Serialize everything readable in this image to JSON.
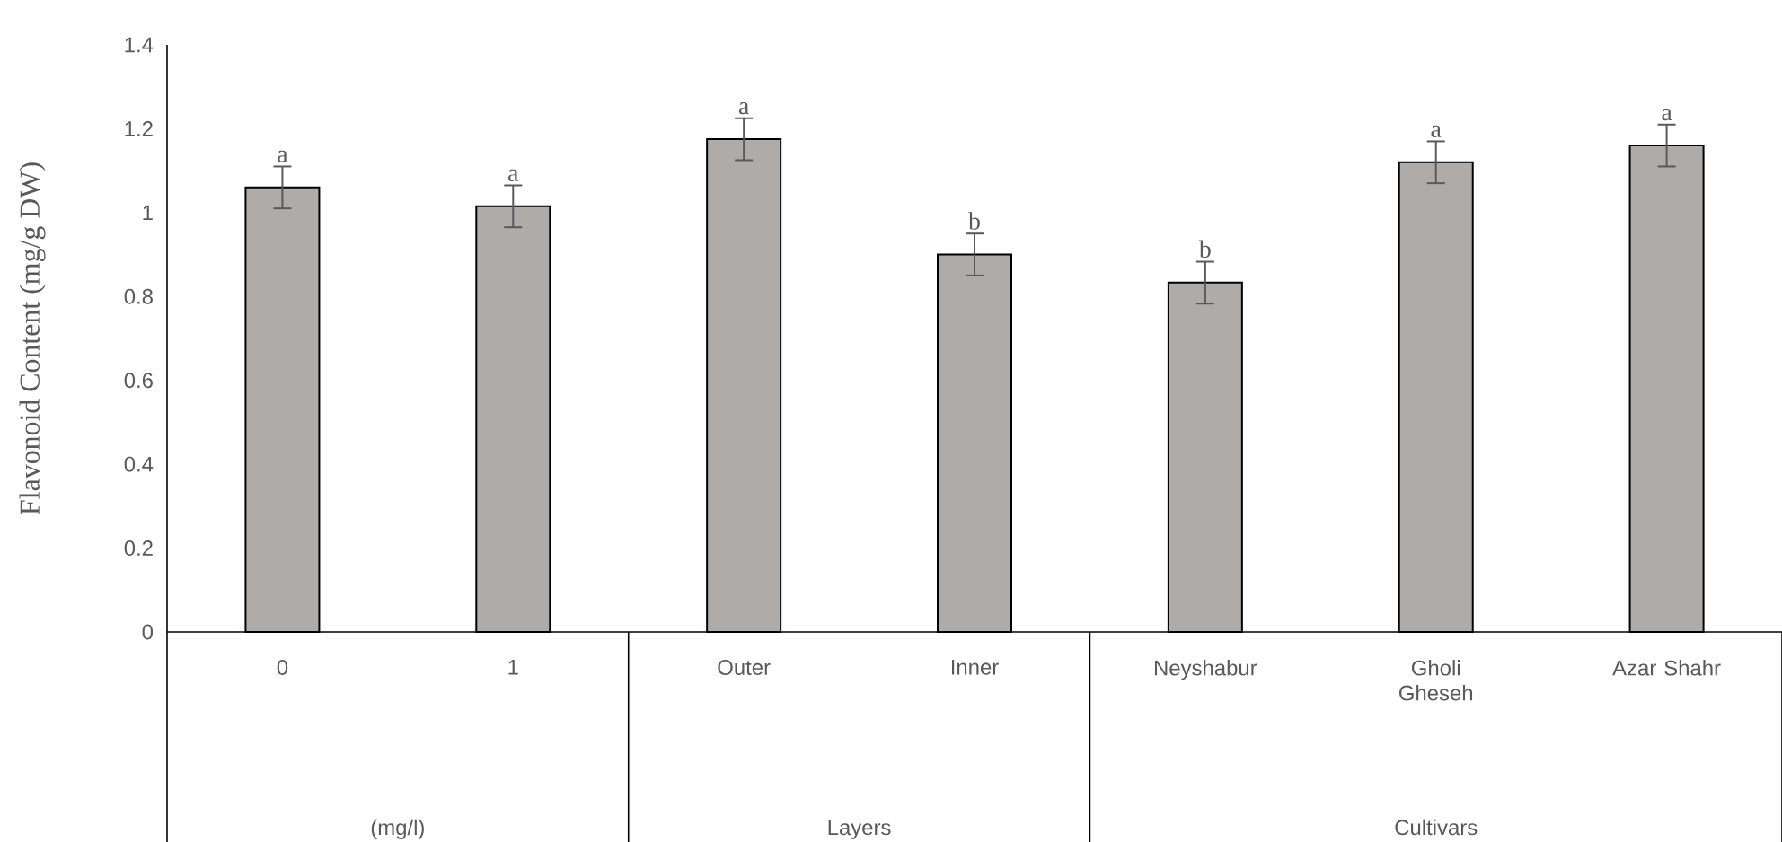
{
  "chart_data": {
    "type": "bar",
    "ylabel": "Flavonoid Content (mg/g DW)",
    "categories": [
      "0",
      "1",
      "Outer",
      "Inner",
      "Neyshabur",
      "Gholi Gheseh",
      "Azar Shahr"
    ],
    "values": [
      1.06,
      1.015,
      1.175,
      0.9,
      0.833,
      1.12,
      1.16
    ],
    "errors": [
      0.05,
      0.05,
      0.05,
      0.05,
      0.05,
      0.05,
      0.05
    ],
    "color": "#afaba9",
    "ylim": [
      0,
      1.4
    ],
    "yticks": [
      0,
      0.2,
      0.4,
      0.6,
      0.8,
      1,
      1.2,
      1.4
    ],
    "grid": false,
    "annotations": [
      {
        "text": "a",
        "x": "0",
        "y": 1.11
      },
      {
        "text": "a",
        "x": "1",
        "y": 1.065
      },
      {
        "text": "a",
        "x": "Outer",
        "y": 1.225
      },
      {
        "text": "b",
        "x": "Inner",
        "y": 0.95
      },
      {
        "text": "b",
        "x": "Neyshabur",
        "y": 0.883
      },
      {
        "text": "a",
        "x": "Gholi Gheseh",
        "y": 1.17
      },
      {
        "text": "a",
        "x": "Azar Shahr",
        "y": 1.21
      },
      "(mg/l)",
      "Layers",
      "Cultivars"
    ]
  }
}
